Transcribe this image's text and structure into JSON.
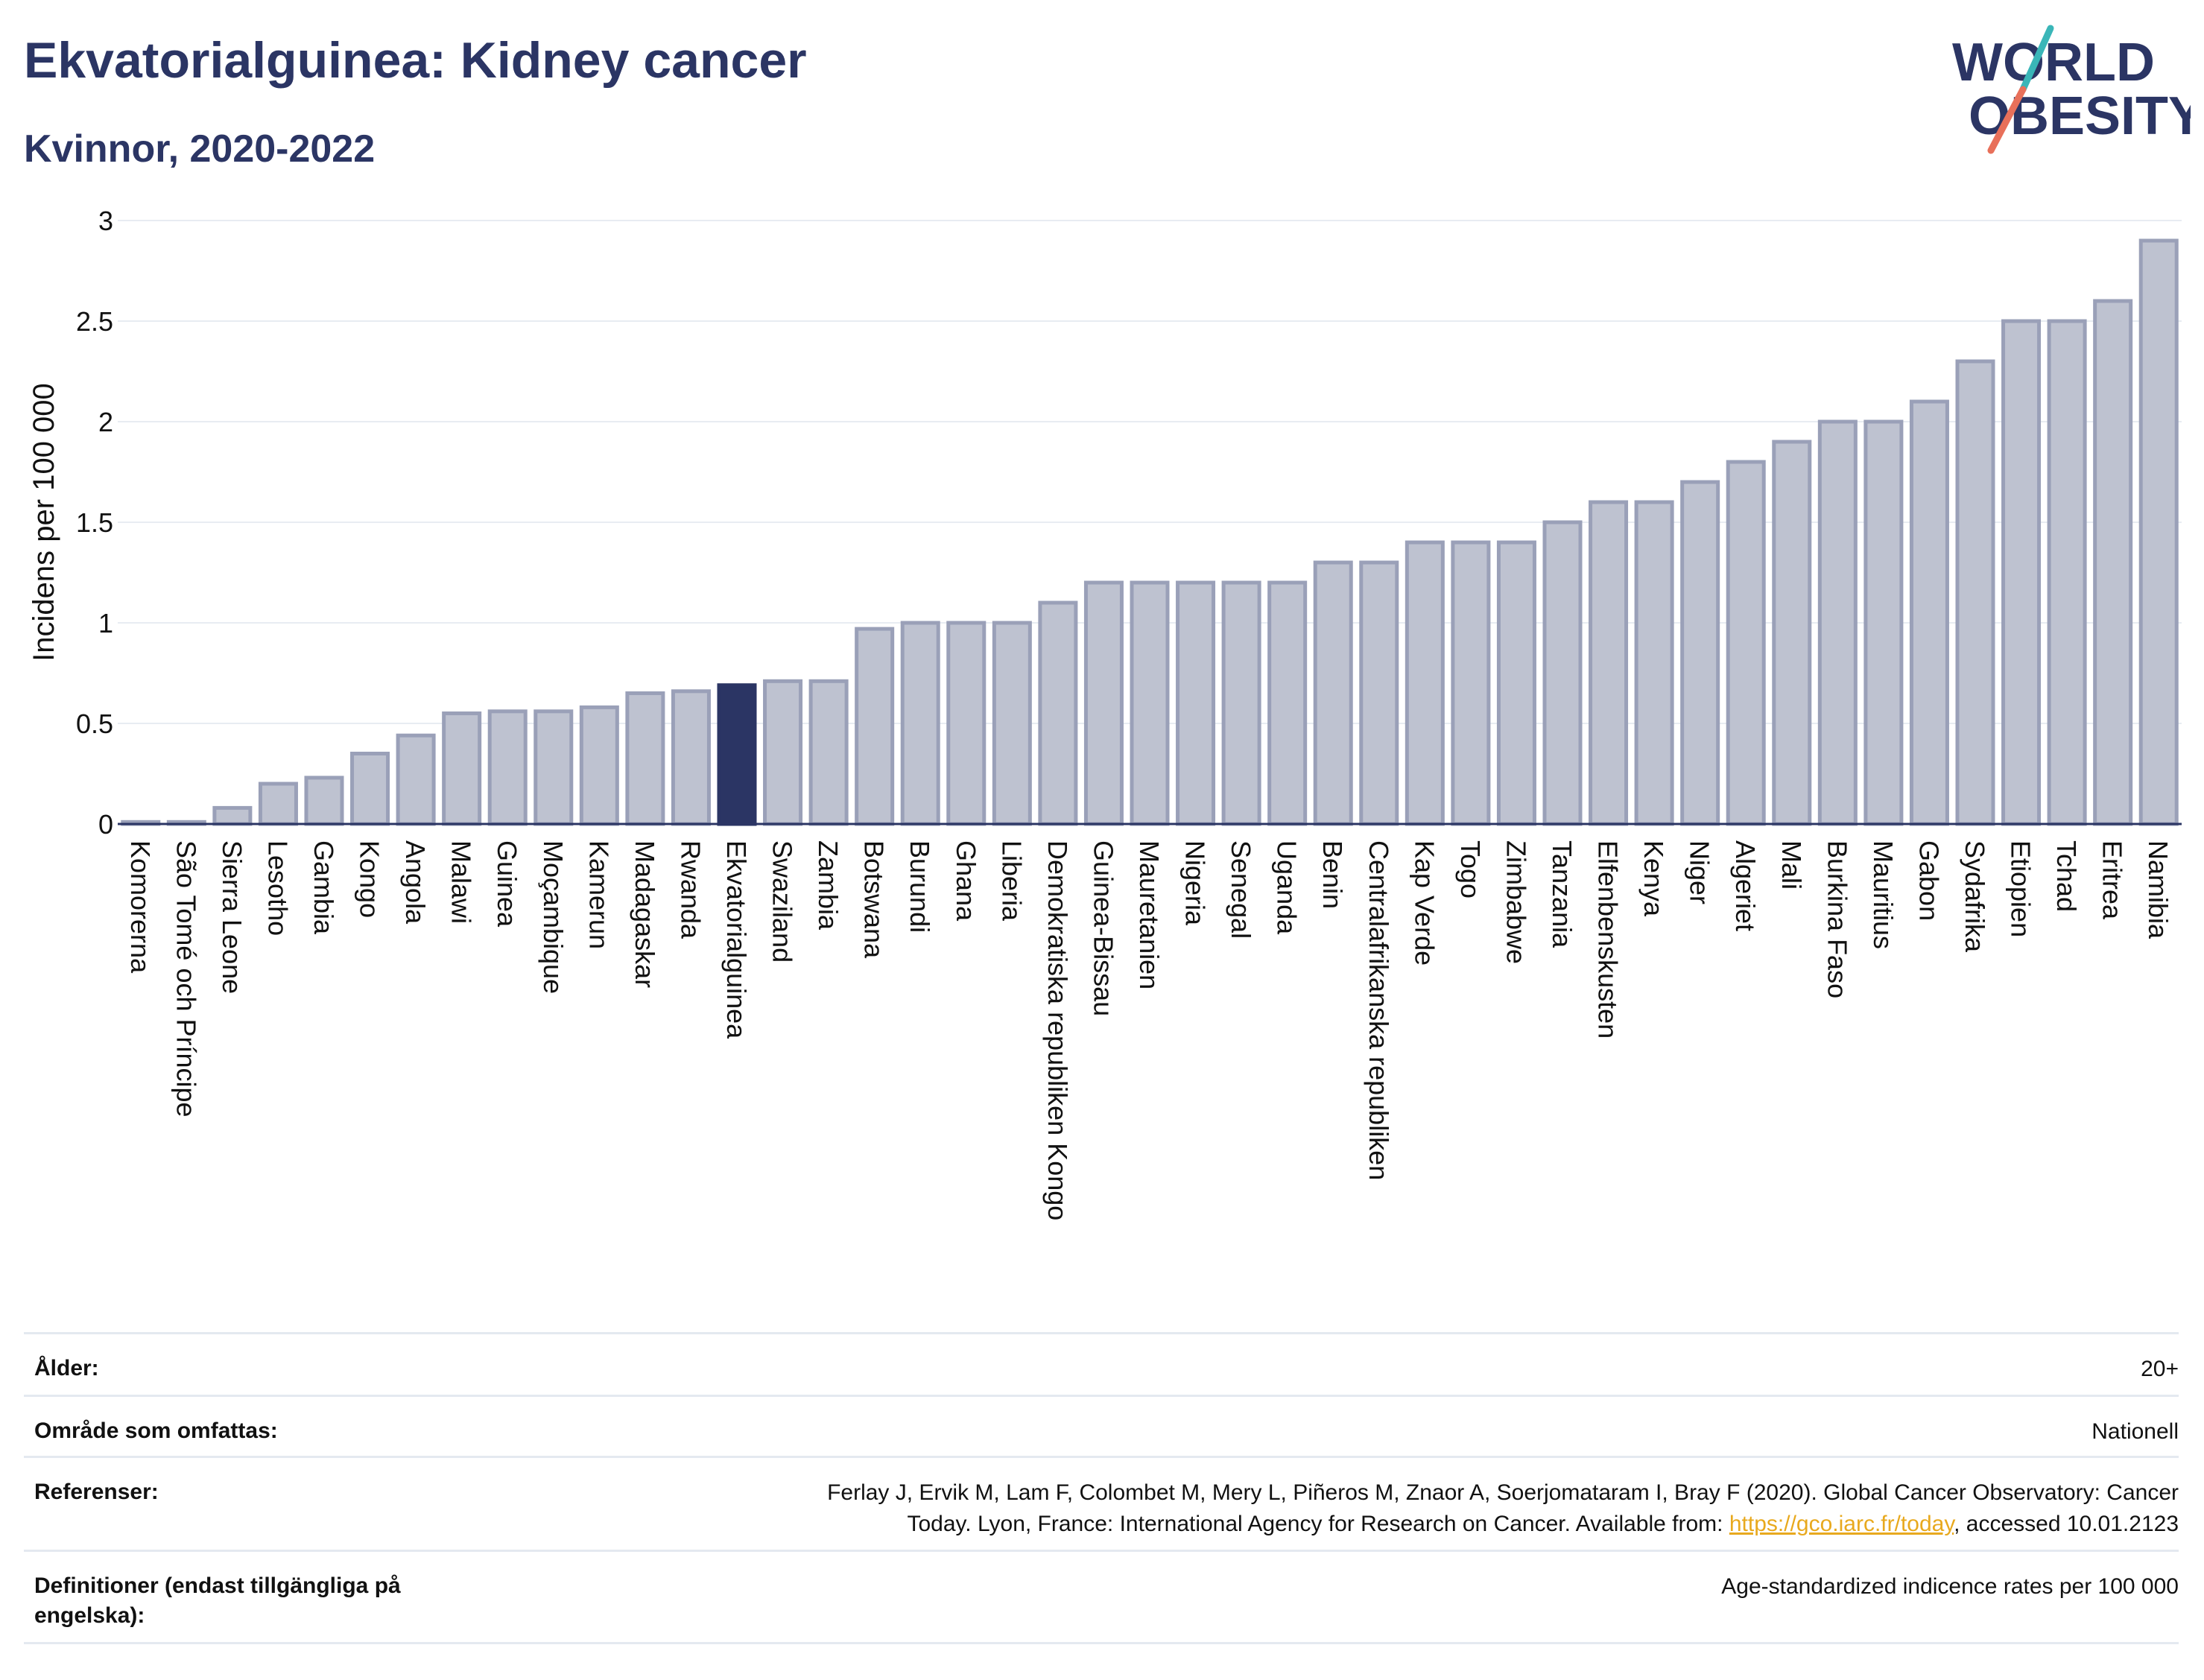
{
  "header": {
    "title": "Ekvatorialguinea: Kidney cancer",
    "subtitle": "Kvinnor, 2020-2022",
    "logo_line1": "WORLD",
    "logo_line2": "OBESITY"
  },
  "colors": {
    "bar": "#bec2d0",
    "bar_stroke": "#9aa0b8",
    "highlight": "#2b3564",
    "grid": "#e8ecf2",
    "text": "#2b3564",
    "link": "#e8a91e",
    "logo_teal": "#3ab6b8",
    "logo_coral": "#e8705a"
  },
  "chart_data": {
    "type": "bar",
    "ylabel": "Incidens per 100 000",
    "ylim": [
      0,
      3
    ],
    "yticks": [
      0,
      0.5,
      1,
      1.5,
      2,
      2.5,
      3
    ],
    "ytick_labels": [
      "0",
      "0.5",
      "1",
      "1.5",
      "2",
      "2.5",
      "3"
    ],
    "grid": true,
    "highlight": "Ekvatorialguinea",
    "categories": [
      "Komorerna",
      "São Tomé och Príncipe",
      "Sierra Leone",
      "Lesotho",
      "Gambia",
      "Kongo",
      "Angola",
      "Malawi",
      "Guinea",
      "Moçambique",
      "Kamerun",
      "Madagaskar",
      "Rwanda",
      "Ekvatorialguinea",
      "Swaziland",
      "Zambia",
      "Botswana",
      "Burundi",
      "Ghana",
      "Liberia",
      "Demokratiska republiken Kongo",
      "Guinea-Bissau",
      "Mauretanien",
      "Nigeria",
      "Senegal",
      "Uganda",
      "Benin",
      "Centralafrikanska republiken",
      "Kap Verde",
      "Togo",
      "Zimbabwe",
      "Tanzania",
      "Elfenbenskusten",
      "Kenya",
      "Niger",
      "Algeriet",
      "Mali",
      "Burkina Faso",
      "Mauritius",
      "Gabon",
      "Sydafrika",
      "Etiopien",
      "Tchad",
      "Eritrea",
      "Namibia"
    ],
    "values": [
      0.01,
      0.01,
      0.08,
      0.2,
      0.23,
      0.35,
      0.44,
      0.55,
      0.56,
      0.56,
      0.58,
      0.65,
      0.66,
      0.69,
      0.71,
      0.71,
      0.97,
      1.0,
      1.0,
      1.0,
      1.1,
      1.2,
      1.2,
      1.2,
      1.2,
      1.2,
      1.3,
      1.3,
      1.4,
      1.4,
      1.4,
      1.5,
      1.6,
      1.6,
      1.7,
      1.8,
      1.9,
      2.0,
      2.0,
      2.1,
      2.3,
      2.5,
      2.5,
      2.6,
      2.9
    ]
  },
  "info": {
    "age_label": "Ålder:",
    "age_value": "20+",
    "area_label": "Område som omfattas:",
    "area_value": "Nationell",
    "ref_label": "Referenser:",
    "ref_line1": "Ferlay J, Ervik M, Lam F, Colombet M, Mery L, Piñeros M, Znaor A, Soerjomataram I, Bray F (2020). Global Cancer Observatory: Cancer",
    "ref_line2_pre": "Today. Lyon, France: International Agency for Research on Cancer. Available from: ",
    "ref_link": "https://gco.iarc.fr/today",
    "ref_line2_post": ", accessed 10.01.2123",
    "def_label": "Definitioner (endast tillgängliga på engelska):",
    "def_value": "Age-standardized indicence rates per 100 000"
  }
}
